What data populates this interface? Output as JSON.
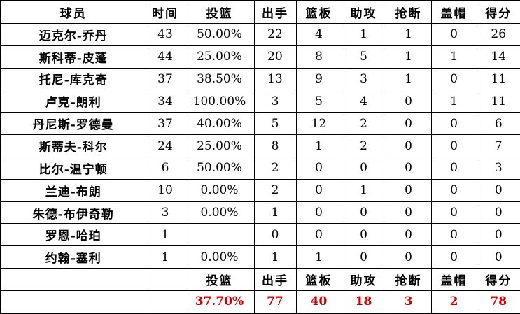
{
  "colors": {
    "background": "#ffffff",
    "grid": "#000000",
    "text": "#000000",
    "totals_text": "#cc0000"
  },
  "chart_data": {
    "type": "table",
    "columns": [
      "球员",
      "时间",
      "投篮",
      "出手",
      "篮板",
      "助攻",
      "抢断",
      "盖帽",
      "得分"
    ],
    "rows": [
      [
        "迈克尔-乔丹",
        "43",
        "50.00%",
        "22",
        "4",
        "1",
        "1",
        "0",
        "26"
      ],
      [
        "斯科蒂-皮蓬",
        "44",
        "25.00%",
        "20",
        "8",
        "5",
        "1",
        "1",
        "14"
      ],
      [
        "托尼-库克奇",
        "37",
        "38.50%",
        "13",
        "9",
        "3",
        "1",
        "0",
        "11"
      ],
      [
        "卢克-朗利",
        "34",
        "100.00%",
        "3",
        "5",
        "4",
        "0",
        "1",
        "11"
      ],
      [
        "丹尼斯-罗德曼",
        "37",
        "40.00%",
        "5",
        "12",
        "2",
        "0",
        "0",
        "6"
      ],
      [
        "斯蒂夫-科尔",
        "24",
        "25.00%",
        "8",
        "1",
        "2",
        "0",
        "0",
        "7"
      ],
      [
        "比尔-温宁顿",
        "6",
        "50.00%",
        "2",
        "0",
        "0",
        "0",
        "0",
        "3"
      ],
      [
        "兰迪-布朗",
        "10",
        "0.00%",
        "2",
        "0",
        "1",
        "0",
        "0",
        "0"
      ],
      [
        "朱德-布伊奇勒",
        "3",
        "0.00%",
        "1",
        "0",
        "0",
        "0",
        "0",
        "0"
      ],
      [
        "罗恩-哈珀",
        "1",
        "",
        "0",
        "0",
        "0",
        "0",
        "0",
        "0"
      ],
      [
        "约翰-塞利",
        "1",
        "0.00%",
        "1",
        "1",
        "0",
        "0",
        "0",
        "0"
      ]
    ],
    "footer_header": [
      "",
      "",
      "投篮",
      "出手",
      "篮板",
      "助攻",
      "抢断",
      "盖帽",
      "得分"
    ],
    "totals": [
      "",
      "",
      "37.70%",
      "77",
      "40",
      "18",
      "3",
      "2",
      "78"
    ]
  }
}
